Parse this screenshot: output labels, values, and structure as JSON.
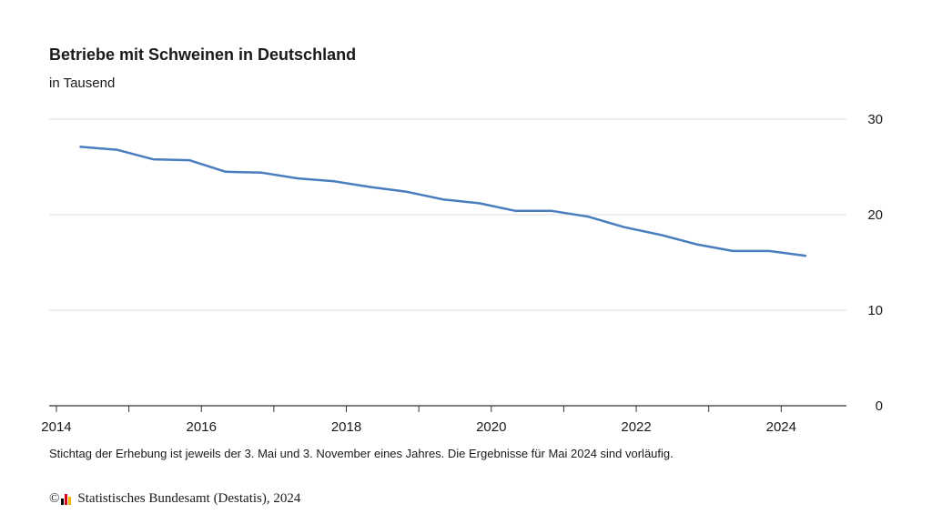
{
  "chart_data": {
    "type": "line",
    "title": "Betriebe mit Schweinen in Deutschland",
    "subtitle": "in Tausend",
    "xlim": [
      2013.9,
      2024.9
    ],
    "ylim": [
      0,
      30
    ],
    "x_ticks": [
      "2014",
      "2016",
      "2018",
      "2020",
      "2022",
      "2024"
    ],
    "y_ticks": [
      "0",
      "10",
      "20",
      "30"
    ],
    "grid": true,
    "series": [
      {
        "color": "#4a7dbe",
        "x": [
          "2014-05",
          "2014-11",
          "2015-05",
          "2015-11",
          "2016-05",
          "2016-11",
          "2017-05",
          "2017-11",
          "2018-05",
          "2018-11",
          "2019-05",
          "2019-11",
          "2020-05",
          "2020-11",
          "2021-05",
          "2021-11",
          "2022-05",
          "2022-11",
          "2023-05",
          "2023-11",
          "2024-05"
        ],
        "values": [
          27.1,
          26.8,
          25.8,
          25.7,
          24.5,
          24.4,
          23.8,
          23.5,
          22.9,
          22.4,
          21.6,
          21.2,
          20.4,
          20.4,
          19.8,
          18.7,
          17.9,
          16.9,
          16.2,
          16.2,
          15.7
        ]
      }
    ]
  },
  "footnote": "Stichtag der Erhebung ist jeweils der 3. Mai und 3. November eines Jahres. Die Ergebnisse für Mai 2024 sind vorläufig.",
  "source": {
    "copyright_symbol": "©",
    "text": "Statistisches Bundesamt (Destatis), 2024",
    "logo_colors": [
      "#000000",
      "#d4001a",
      "#f2b800"
    ]
  }
}
